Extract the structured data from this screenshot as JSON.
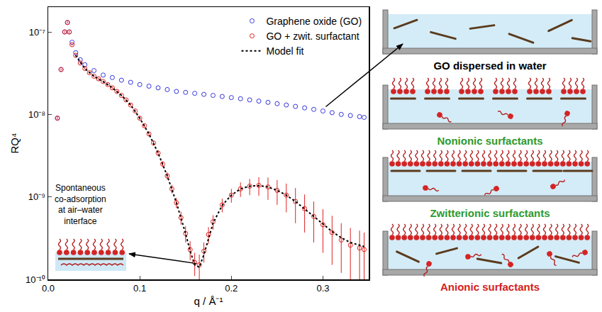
{
  "chart_data": {
    "type": "scatter",
    "x_label": "q / Å⁻¹",
    "y_label": "RQ⁴",
    "log": "y",
    "grid": false,
    "legend": "top-right",
    "xlim": [
      0,
      0.35
    ],
    "ylim": [
      1e-10,
      2e-07
    ],
    "xticks": [
      {
        "value": 0,
        "label": "0.0"
      },
      0.1,
      0.2,
      0.3
    ],
    "yticks": [
      {
        "value": 1e-10,
        "label": "10⁻¹⁰"
      },
      {
        "value": 1e-09,
        "label": "10⁻⁹"
      },
      {
        "value": 1e-08,
        "label": "10⁻⁸"
      },
      {
        "value": 1e-07,
        "label": "10⁻⁷"
      }
    ],
    "series": [
      {
        "name": "Graphene oxide (GO)",
        "color": "#3434e0",
        "marker": "open circle",
        "x": [
          0.01,
          0.014,
          0.018,
          0.021,
          0.023,
          0.026,
          0.03,
          0.035,
          0.04,
          0.05,
          0.06,
          0.07,
          0.08,
          0.09,
          0.1,
          0.11,
          0.12,
          0.13,
          0.14,
          0.15,
          0.16,
          0.17,
          0.18,
          0.19,
          0.2,
          0.21,
          0.22,
          0.23,
          0.24,
          0.25,
          0.26,
          0.27,
          0.28,
          0.29,
          0.3,
          0.31,
          0.32,
          0.33,
          0.34,
          0.345
        ],
        "values": [
          9e-09,
          3.5e-08,
          1e-07,
          1.3e-07,
          1e-07,
          7.5e-08,
          5.6e-08,
          4.6e-08,
          4e-08,
          3.4e-08,
          3e-08,
          2.8e-08,
          2.6e-08,
          2.45e-08,
          2.3e-08,
          2.2e-08,
          2.1e-08,
          2e-08,
          1.9e-08,
          1.85e-08,
          1.8e-08,
          1.75e-08,
          1.7e-08,
          1.65e-08,
          1.6e-08,
          1.55e-08,
          1.5e-08,
          1.45e-08,
          1.4e-08,
          1.35e-08,
          1.3e-08,
          1.25e-08,
          1.2e-08,
          1.15e-08,
          1.1e-08,
          1.05e-08,
          1e-08,
          9.7e-09,
          9.4e-09,
          9.2e-09
        ]
      },
      {
        "name": "GO + zwit. surfactant",
        "color": "#e02020",
        "marker": "open circle",
        "x": [
          0.01,
          0.014,
          0.018,
          0.021,
          0.023,
          0.026,
          0.03,
          0.035,
          0.04,
          0.045,
          0.05,
          0.055,
          0.06,
          0.065,
          0.07,
          0.075,
          0.08,
          0.085,
          0.09,
          0.095,
          0.1,
          0.105,
          0.11,
          0.115,
          0.12,
          0.125,
          0.13,
          0.135,
          0.14,
          0.145,
          0.15,
          0.155,
          0.16,
          0.165,
          0.17,
          0.175,
          0.18,
          0.19,
          0.2,
          0.21,
          0.22,
          0.23,
          0.24,
          0.25,
          0.26,
          0.27,
          0.28,
          0.29,
          0.3,
          0.31,
          0.32,
          0.33,
          0.34,
          0.345
        ],
        "values": [
          9e-09,
          3.5e-08,
          1e-07,
          1.3e-07,
          1e-07,
          7e-08,
          5.2e-08,
          4.2e-08,
          3.6e-08,
          3.2e-08,
          2.9e-08,
          2.7e-08,
          2.5e-08,
          2.3e-08,
          2.1e-08,
          1.9e-08,
          1.7e-08,
          1.5e-08,
          1.3e-08,
          1.1e-08,
          9e-09,
          7.3e-09,
          5.8e-09,
          4.5e-09,
          3.4e-09,
          2.5e-09,
          1.8e-09,
          1.25e-09,
          8.5e-10,
          5.6e-10,
          3.6e-10,
          2.3e-10,
          1.6e-10,
          1.5e-10,
          2.2e-10,
          3.5e-10,
          5e-10,
          8e-10,
          1.05e-09,
          1.25e-09,
          1.35e-09,
          1.38e-09,
          1.32e-09,
          1.2e-09,
          1.05e-09,
          8.8e-10,
          7.2e-10,
          5.8e-10,
          4.6e-10,
          3.7e-10,
          3e-10,
          2.6e-10,
          2.4e-10,
          2.3e-10
        ],
        "errors": [
          4e-10,
          1e-09,
          3e-09,
          4e-09,
          3e-09,
          2e-09,
          1.5e-09,
          1.2e-09,
          1e-09,
          9e-10,
          8e-10,
          8e-10,
          7e-10,
          7e-10,
          6e-10,
          6e-10,
          5e-10,
          5e-10,
          4e-10,
          4e-10,
          4e-10,
          3e-10,
          3e-10,
          3e-10,
          2.5e-10,
          2e-10,
          1.8e-10,
          1.5e-10,
          1.2e-10,
          1e-10,
          8e-11,
          6e-11,
          5e-11,
          5e-11,
          6e-11,
          8e-11,
          1e-10,
          1.5e-10,
          2e-10,
          2.5e-10,
          3e-10,
          3.5e-10,
          4e-10,
          4e-10,
          4e-10,
          4e-10,
          3.5e-10,
          3e-10,
          2.5e-10,
          2.2e-10,
          1.8e-10,
          1.6e-10,
          1.5e-10,
          1.4e-10
        ]
      },
      {
        "name": "Model fit",
        "type": "line",
        "line_style": "dotted",
        "color": "#000000",
        "x": [
          0.03,
          0.04,
          0.05,
          0.06,
          0.07,
          0.08,
          0.09,
          0.1,
          0.11,
          0.12,
          0.13,
          0.14,
          0.15,
          0.155,
          0.16,
          0.165,
          0.17,
          0.18,
          0.19,
          0.2,
          0.21,
          0.22,
          0.23,
          0.24,
          0.25,
          0.26,
          0.27,
          0.28,
          0.29,
          0.3,
          0.31,
          0.32,
          0.33,
          0.34,
          0.345
        ],
        "values": [
          5.2e-08,
          3.6e-08,
          2.9e-08,
          2.5e-08,
          2.1e-08,
          1.7e-08,
          1.3e-08,
          9e-09,
          5.8e-09,
          3.4e-09,
          1.8e-09,
          8.5e-10,
          3.6e-10,
          2.2e-10,
          1.5e-10,
          1.4e-10,
          2e-10,
          4.8e-10,
          7.9e-10,
          1.05e-09,
          1.25e-09,
          1.35e-09,
          1.37e-09,
          1.32e-09,
          1.2e-09,
          1.05e-09,
          8.8e-10,
          7.2e-10,
          5.8e-10,
          4.7e-10,
          3.8e-10,
          3.2e-10,
          2.8e-10,
          2.6e-10,
          2.5e-10
        ]
      }
    ],
    "annotations": [
      {
        "text": "Spontaneous co-adsorption at air–water interface"
      }
    ]
  },
  "schematic": {
    "panels": [
      {
        "label": "GO dispersed in water",
        "color": "#000000"
      },
      {
        "label": "Nonionic surfactants",
        "color": "#2e9a2e"
      },
      {
        "label": "Zwitterionic surfactants",
        "color": "#2e9a2e"
      },
      {
        "label": "Anionic surfactants",
        "color": "#d42020"
      }
    ]
  }
}
